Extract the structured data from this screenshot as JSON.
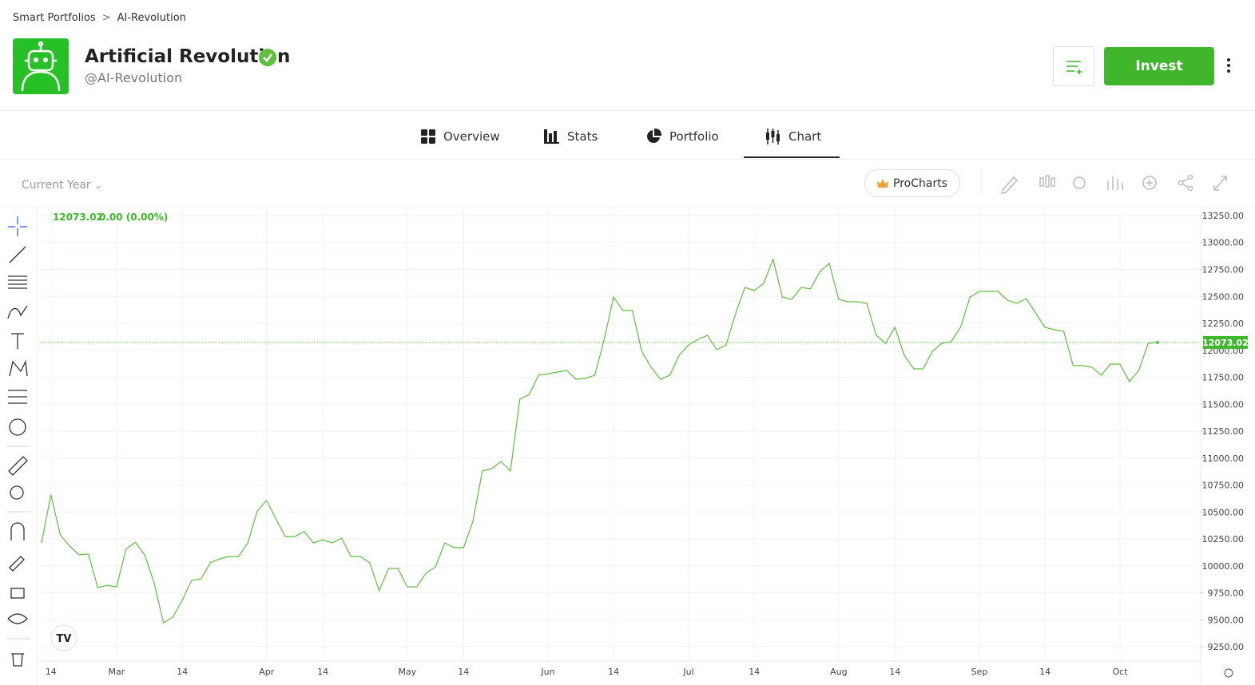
{
  "breadcrumb": [
    "Smart Portfolios",
    "AI-Revolution"
  ],
  "header": {
    "title": "Artificial Revolution",
    "handle": "@AI-Revolution",
    "invest": "Invest"
  },
  "tabs": [
    "Overview",
    "Stats",
    "Portfolio",
    "Chart"
  ],
  "toolbar": {
    "period": "Current Year",
    "procharts": "ProCharts"
  },
  "chart_data": {
    "type": "line",
    "legend": {
      "price": "12073.02",
      "change": "0.00 (0.00%)"
    },
    "last_label": "12073.02",
    "categories": [
      null,
      "14",
      null,
      null,
      null,
      null,
      null,
      null,
      "Mar",
      null,
      null,
      null,
      null,
      null,
      null,
      "14",
      null,
      null,
      null,
      null,
      null,
      null,
      null,
      null,
      "Apr",
      null,
      null,
      null,
      null,
      null,
      "14",
      null,
      null,
      null,
      null,
      null,
      null,
      null,
      null,
      "May",
      null,
      null,
      null,
      null,
      null,
      "14",
      null,
      null,
      null,
      null,
      null,
      null,
      null,
      null,
      "Jun",
      null,
      null,
      null,
      null,
      null,
      null,
      "14",
      null,
      null,
      null,
      null,
      null,
      null,
      null,
      "Jul",
      null,
      null,
      null,
      null,
      null,
      null,
      "14",
      null,
      null,
      null,
      null,
      null,
      null,
      null,
      null,
      "Aug",
      null,
      null,
      null,
      null,
      null,
      "14",
      null,
      null,
      null,
      null,
      null,
      null,
      null,
      null,
      "Sep",
      null,
      null,
      null,
      null,
      null,
      null,
      "14",
      null,
      null,
      null,
      null,
      null,
      null,
      null,
      "Oct",
      null,
      null,
      null,
      null
    ],
    "series": [
      {
        "name": "AI-Revolution",
        "color": "#5cbf3e",
        "values": [
          10213,
          10660,
          10287,
          10183,
          10102,
          10110,
          9798,
          9820,
          9805,
          10154,
          10220,
          10102,
          9843,
          9472,
          9524,
          9680,
          9865,
          9880,
          10028,
          10065,
          10087,
          10087,
          10213,
          10509,
          10606,
          10435,
          10272,
          10272,
          10317,
          10213,
          10243,
          10213,
          10257,
          10087,
          10087,
          10028,
          9769,
          9976,
          9976,
          9805,
          9805,
          9932,
          9990,
          10213,
          10169,
          10169,
          10413,
          10880,
          10902,
          10969,
          10880,
          11546,
          11591,
          11769,
          11783,
          11798,
          11813,
          11731,
          11739,
          11769,
          12102,
          12494,
          12369,
          12369,
          11991,
          11843,
          11731,
          11769,
          11954,
          12050,
          12102,
          12139,
          12006,
          12050,
          12339,
          12583,
          12554,
          12620,
          12843,
          12494,
          12472,
          12583,
          12569,
          12731,
          12806,
          12472,
          12450,
          12450,
          12435,
          12139,
          12065,
          12213,
          11954,
          11828,
          11828,
          11991,
          12065,
          12080,
          12213,
          12494,
          12546,
          12546,
          12546,
          12465,
          12435,
          12480,
          12346,
          12213,
          12191,
          12176,
          11858,
          11858,
          11843,
          11769,
          11872,
          11872,
          11709,
          11813,
          12065,
          12073.02
        ]
      }
    ],
    "ylim": [
      9117,
      13324
    ],
    "yticks": [
      {
        "value": 13250,
        "label": "13250.00"
      },
      {
        "value": 13000,
        "label": "13000.00"
      },
      {
        "value": 12750,
        "label": "12750.00"
      },
      {
        "value": 12500,
        "label": "12500.00"
      },
      {
        "value": 12250,
        "label": "12250.00"
      },
      {
        "value": 12000,
        "label": "12000.00"
      },
      {
        "value": 11750,
        "label": "11750.00"
      },
      {
        "value": 11500,
        "label": "11500.00"
      },
      {
        "value": 11250,
        "label": "11250.00"
      },
      {
        "value": 11000,
        "label": "11000.00"
      },
      {
        "value": 10750,
        "label": "10750.00"
      },
      {
        "value": 10500,
        "label": "10500.00"
      },
      {
        "value": 10250,
        "label": "10250.00"
      },
      {
        "value": 10000,
        "label": "10000.00"
      },
      {
        "value": 9750,
        "label": "9750.00"
      },
      {
        "value": 9500,
        "label": "9500.00"
      },
      {
        "value": 9250,
        "label": "9250.00"
      }
    ],
    "grid": true
  }
}
